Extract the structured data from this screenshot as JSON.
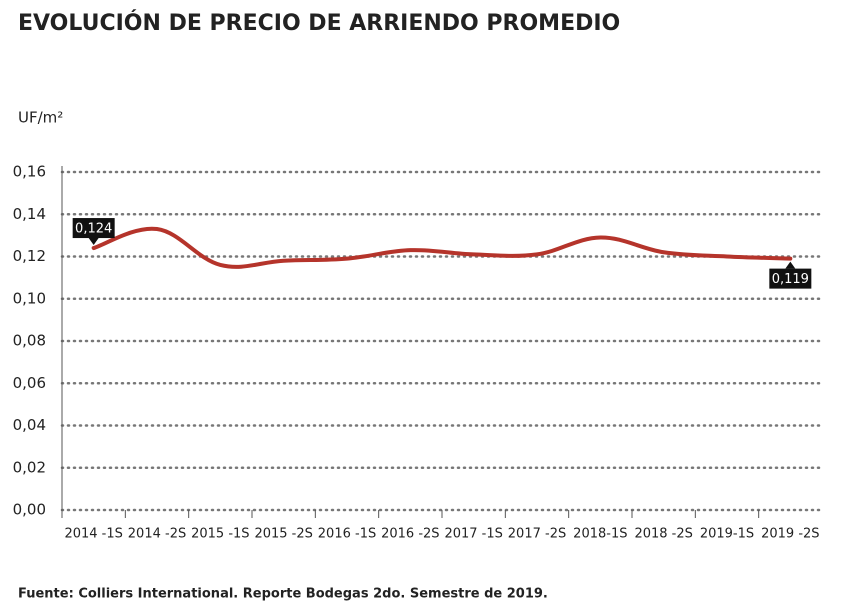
{
  "chart_data": {
    "type": "line",
    "title": "EVOLUCIÓN DE PRECIO DE ARRIENDO PROMEDIO",
    "y_label": "UF/m²",
    "source": "Fuente: Colliers International. Reporte Bodegas 2do. Semestre de 2019.",
    "categories": [
      "2014 -1S",
      "2014 -2S",
      "2015 -1S",
      "2015 -2S",
      "2016 -1S",
      "2016 -2S",
      "2017 -1S",
      "2017 -2S",
      "2018-1S",
      "2018 -2S",
      "2019-1S",
      "2019 -2S"
    ],
    "values": [
      0.124,
      0.133,
      0.116,
      0.118,
      0.119,
      0.123,
      0.121,
      0.121,
      0.129,
      0.122,
      0.12,
      0.119
    ],
    "value_labels": [
      "0,124",
      null,
      null,
      null,
      null,
      null,
      null,
      null,
      null,
      null,
      null,
      "0,119"
    ],
    "color": "#b5342b",
    "ylim": [
      0,
      0.16
    ],
    "yticks": [
      {
        "value": 0,
        "label": "0,00"
      },
      {
        "value": 0.02,
        "label": "0,02"
      },
      {
        "value": 0.04,
        "label": "0,04"
      },
      {
        "value": 0.06,
        "label": "0,06"
      },
      {
        "value": 0.08,
        "label": "0,08"
      },
      {
        "value": 0.1,
        "label": "0,10"
      },
      {
        "value": 0.12,
        "label": "0,12"
      },
      {
        "value": 0.14,
        "label": "0,14"
      },
      {
        "value": 0.16,
        "label": "0,16"
      }
    ],
    "grid": true
  }
}
